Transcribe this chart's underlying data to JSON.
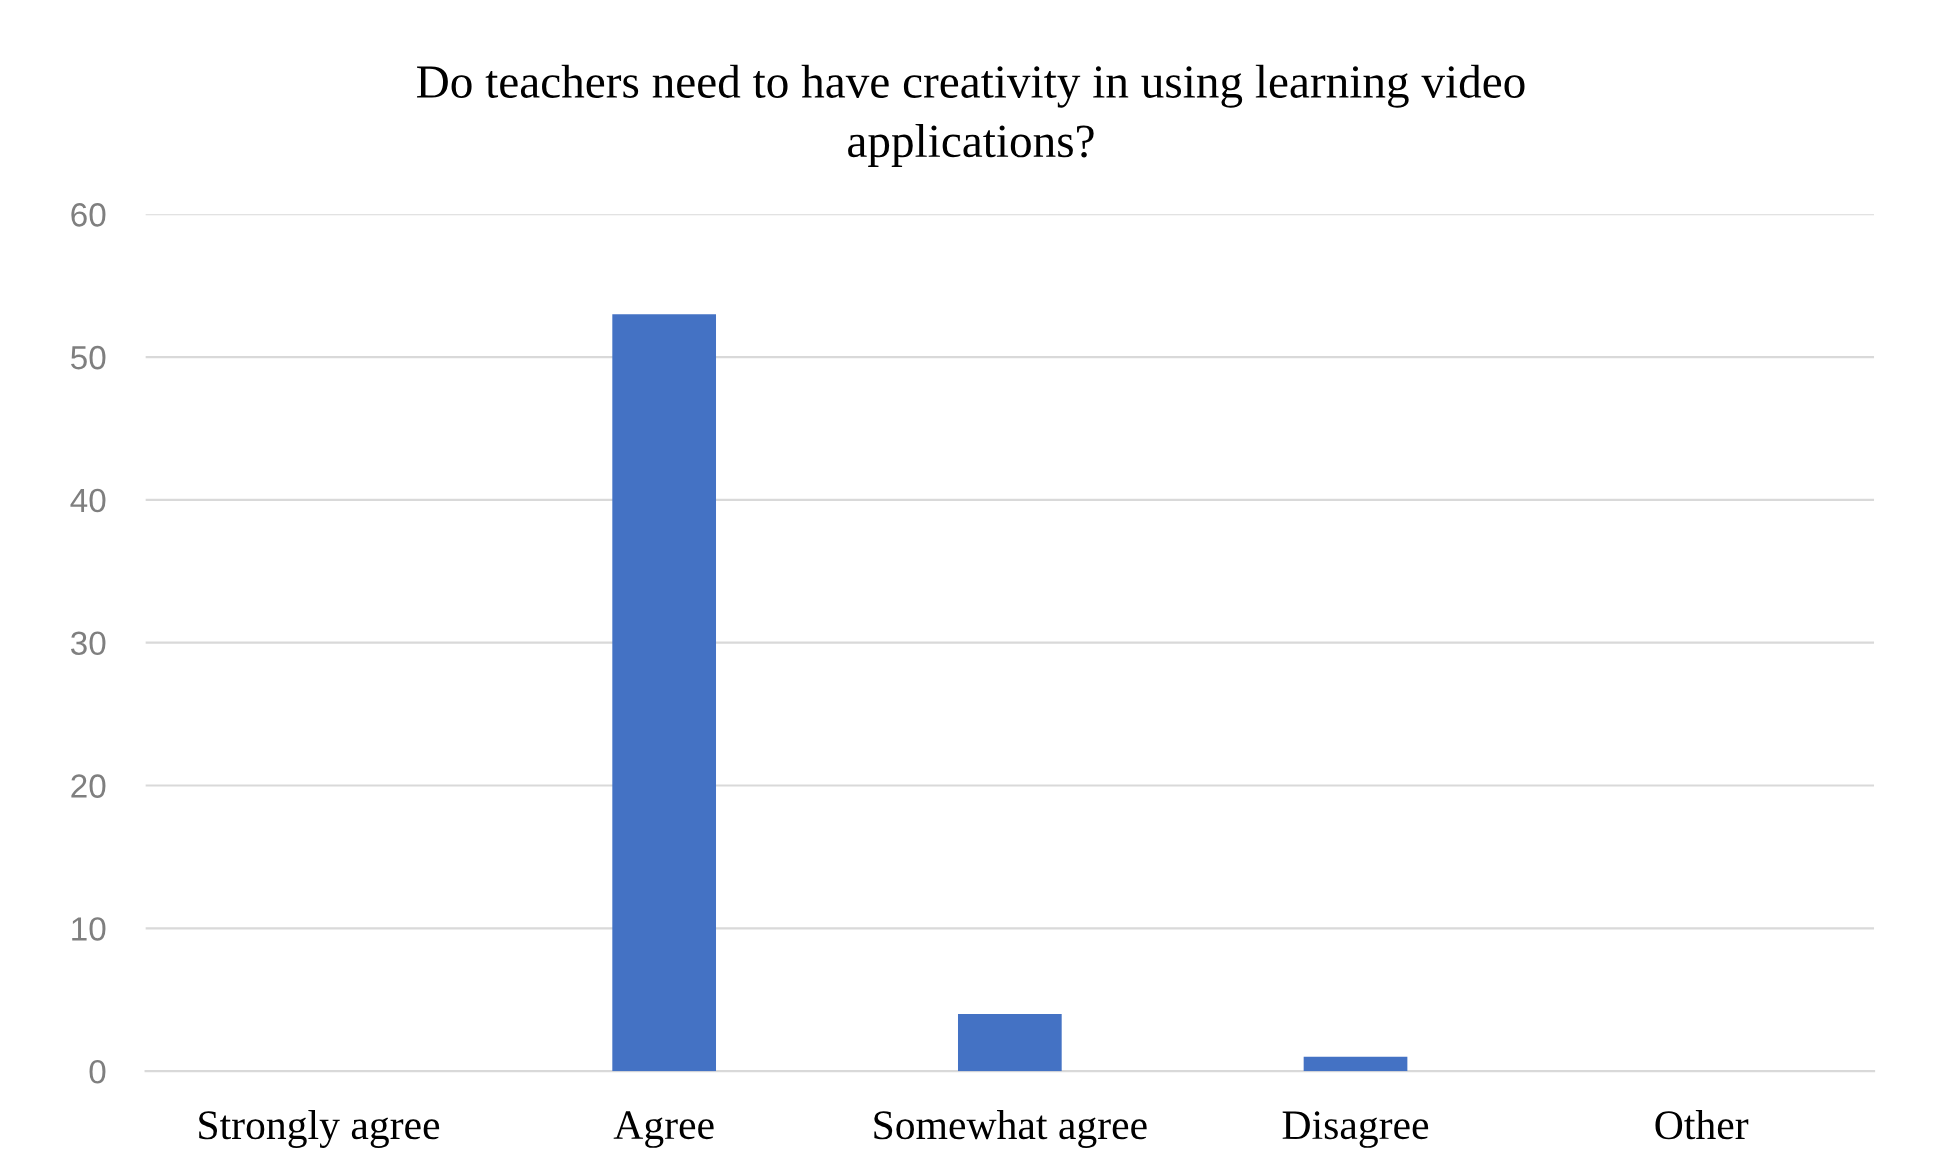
{
  "chart_data": {
    "type": "bar",
    "title": "Do teachers need to have creativity in using learning video\napplications?",
    "categories": [
      "Strongly agree",
      "Agree",
      "Somewhat agree",
      "Disagree",
      "Other"
    ],
    "values": [
      0,
      53,
      4,
      1,
      0
    ],
    "color": "#4472c4",
    "ylim": [
      0,
      60
    ],
    "yticks": [
      0,
      10,
      20,
      30,
      40,
      50,
      60
    ],
    "grid": "y"
  }
}
